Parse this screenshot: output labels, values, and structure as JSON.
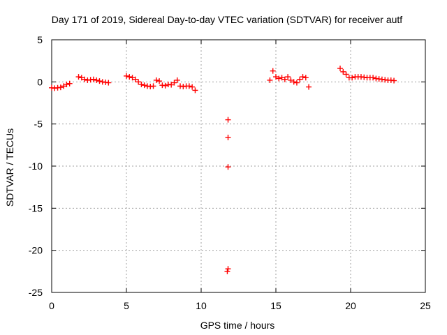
{
  "chart_data": {
    "type": "scatter",
    "title": "Day 171 of 2019, Sidereal Day-to-day VTEC variation (SDTVAR) for receiver autf",
    "xlabel": "GPS time / hours",
    "ylabel": "SDTVAR / TECUs",
    "xlim": [
      0,
      25
    ],
    "ylim": [
      -25,
      5
    ],
    "xticks": [
      0,
      5,
      10,
      15,
      20,
      25
    ],
    "yticks": [
      5,
      0,
      -5,
      -10,
      -15,
      -20,
      -25
    ],
    "xtick_labels": [
      "0",
      "5",
      "10",
      "15",
      "20",
      "25"
    ],
    "ytick_labels": [
      "5",
      "0",
      "-5",
      "-10",
      "-15",
      "-20",
      "-25"
    ],
    "grid": true,
    "marker": "+",
    "color": "#ff0000",
    "series": [
      {
        "name": "SDTVAR",
        "x": [
          0.0,
          0.2,
          0.4,
          0.6,
          0.8,
          1.0,
          1.2,
          1.8,
          2.0,
          2.2,
          2.4,
          2.6,
          2.8,
          3.0,
          3.2,
          3.4,
          3.6,
          3.8,
          5.0,
          5.2,
          5.4,
          5.6,
          5.8,
          6.0,
          6.2,
          6.4,
          6.6,
          6.8,
          7.0,
          7.2,
          7.4,
          7.6,
          7.8,
          8.0,
          8.2,
          8.4,
          8.6,
          8.8,
          9.0,
          9.2,
          9.4,
          9.6,
          11.8,
          11.8,
          11.8,
          11.8,
          11.75,
          14.6,
          14.8,
          15.0,
          15.2,
          15.4,
          15.6,
          15.8,
          16.0,
          16.2,
          16.4,
          16.6,
          16.8,
          17.0,
          17.2,
          19.3,
          19.5,
          19.7,
          19.9,
          20.1,
          20.3,
          20.5,
          20.7,
          20.9,
          21.1,
          21.3,
          21.5,
          21.7,
          21.9,
          22.1,
          22.3,
          22.5,
          22.7,
          22.9
        ],
        "y": [
          -0.7,
          -0.75,
          -0.7,
          -0.65,
          -0.5,
          -0.3,
          -0.2,
          0.6,
          0.5,
          0.3,
          0.2,
          0.25,
          0.3,
          0.2,
          0.1,
          0.0,
          -0.05,
          -0.1,
          0.7,
          0.6,
          0.5,
          0.3,
          0.0,
          -0.3,
          -0.4,
          -0.5,
          -0.55,
          -0.5,
          0.2,
          0.1,
          -0.4,
          -0.45,
          -0.3,
          -0.35,
          -0.1,
          0.2,
          -0.5,
          -0.55,
          -0.5,
          -0.5,
          -0.6,
          -1.0,
          -4.5,
          -6.6,
          -10.1,
          -22.2,
          -22.5,
          0.2,
          1.3,
          0.6,
          0.4,
          0.5,
          0.3,
          0.6,
          0.2,
          0.0,
          -0.1,
          0.3,
          0.6,
          0.5,
          -0.6,
          1.6,
          1.2,
          0.9,
          0.5,
          0.5,
          0.6,
          0.6,
          0.6,
          0.55,
          0.5,
          0.5,
          0.5,
          0.4,
          0.35,
          0.3,
          0.25,
          0.2,
          0.2,
          0.15
        ]
      }
    ]
  }
}
